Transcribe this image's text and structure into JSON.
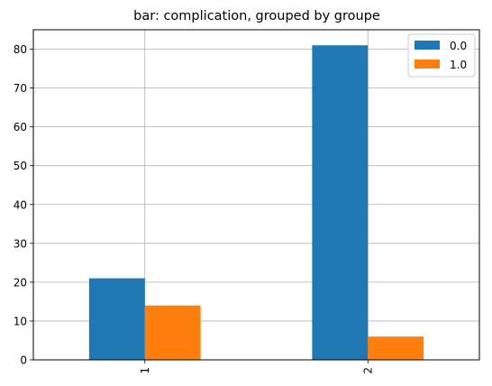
{
  "chart_data": {
    "type": "bar",
    "title": "bar: complication, grouped by groupe",
    "xlabel": "",
    "ylabel": "",
    "categories": [
      "1",
      "2"
    ],
    "series": [
      {
        "name": "0.0",
        "values": [
          21,
          81
        ]
      },
      {
        "name": "1.0",
        "values": [
          14,
          6
        ]
      }
    ],
    "ylim": [
      0,
      85
    ],
    "yticks": [
      0,
      10,
      20,
      30,
      40,
      50,
      60,
      70,
      80
    ],
    "grid": true,
    "legend": "top-right",
    "x_tick_rotation": "vertical",
    "colors": [
      "#1f77b4",
      "#ff7f0e"
    ]
  }
}
